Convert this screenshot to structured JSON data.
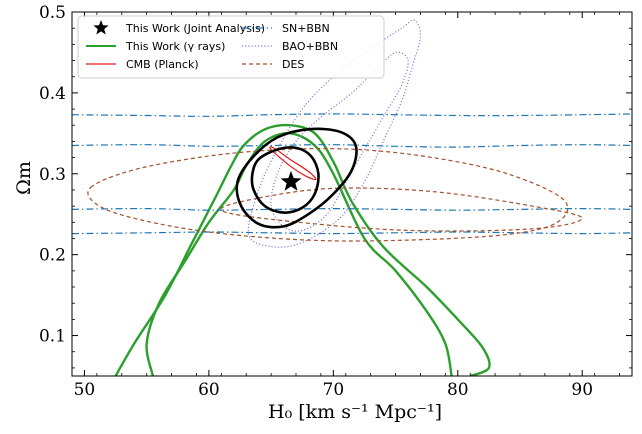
{
  "chart_data": {
    "type": "contour",
    "xlabel": "H₀ [km s⁻¹ Mpc⁻¹]",
    "ylabel": "Ωm",
    "xlim": [
      49,
      94
    ],
    "ylim": [
      0.05,
      0.5
    ],
    "xticks": [
      "50",
      "60",
      "70",
      "80",
      "90"
    ],
    "yticks": [
      "0.1",
      "0.2",
      "0.3",
      "0.4",
      "0.5"
    ],
    "xtick_values": [
      50,
      60,
      70,
      80,
      90
    ],
    "ytick_values": [
      0.1,
      0.2,
      0.3,
      0.4,
      0.5
    ],
    "grid": false,
    "legend_placement": "top",
    "best_fit": {
      "name": "This Work (Joint Analysis)",
      "x": 66.6,
      "y": 0.29
    },
    "series": [
      {
        "name": "This Work (γ rays)",
        "color": "#2ca02c",
        "style": "solid",
        "contours": [
          [
            [
              55.5,
              0.05
            ],
            [
              55,
              0.09
            ],
            [
              56,
              0.14
            ],
            [
              58,
              0.19
            ],
            [
              60,
              0.24
            ],
            [
              62,
              0.28
            ],
            [
              63,
              0.31
            ],
            [
              64.5,
              0.34
            ],
            [
              66.5,
              0.35
            ],
            [
              68.5,
              0.335
            ],
            [
              70,
              0.3
            ],
            [
              72.5,
              0.22
            ],
            [
              75,
              0.18
            ],
            [
              77.5,
              0.13
            ],
            [
              79,
              0.09
            ],
            [
              79.5,
              0.05
            ]
          ],
          [
            [
              52.5,
              0.05
            ],
            [
              54,
              0.09
            ],
            [
              56.5,
              0.15
            ],
            [
              58.5,
              0.21
            ],
            [
              60.5,
              0.27
            ],
            [
              61.8,
              0.31
            ],
            [
              62.8,
              0.335
            ],
            [
              64.5,
              0.355
            ],
            [
              66.5,
              0.36
            ],
            [
              68.5,
              0.35
            ],
            [
              70,
              0.315
            ],
            [
              71.5,
              0.265
            ],
            [
              74,
              0.21
            ],
            [
              77.5,
              0.16
            ],
            [
              80,
              0.12
            ],
            [
              82,
              0.085
            ],
            [
              82.5,
              0.06
            ],
            [
              81,
              0.05
            ]
          ]
        ]
      },
      {
        "name": "CMB (Planck)",
        "color": "#e41a1c",
        "style": "solid",
        "contours": [
          [
            [
              65,
              0.33
            ],
            [
              66.5,
              0.31
            ],
            [
              67.8,
              0.297
            ],
            [
              68.6,
              0.293
            ],
            [
              68,
              0.303
            ],
            [
              66.5,
              0.318
            ],
            [
              65.2,
              0.332
            ],
            [
              65,
              0.33
            ]
          ]
        ]
      },
      {
        "name": "SN+BBN",
        "color": "#1f77b4",
        "style": "dashdot",
        "contours": [
          [
            [
              49,
              0.373
            ],
            [
              55,
              0.372
            ],
            [
              60,
              0.371
            ],
            [
              65,
              0.373
            ],
            [
              70,
              0.374
            ],
            [
              75,
              0.373
            ],
            [
              80,
              0.372
            ],
            [
              85,
              0.372
            ],
            [
              90,
              0.373
            ],
            [
              94,
              0.374
            ]
          ],
          [
            [
              49,
              0.335
            ],
            [
              55,
              0.336
            ],
            [
              60,
              0.334
            ],
            [
              65,
              0.335
            ],
            [
              70,
              0.336
            ],
            [
              75,
              0.334
            ],
            [
              80,
              0.333
            ],
            [
              85,
              0.335
            ],
            [
              90,
              0.336
            ],
            [
              94,
              0.335
            ]
          ],
          [
            [
              49,
              0.256
            ],
            [
              55,
              0.257
            ],
            [
              60,
              0.255
            ],
            [
              65,
              0.256
            ],
            [
              70,
              0.257
            ],
            [
              75,
              0.256
            ],
            [
              80,
              0.255
            ],
            [
              85,
              0.256
            ],
            [
              90,
              0.257
            ],
            [
              94,
              0.256
            ]
          ],
          [
            [
              49,
              0.226
            ],
            [
              55,
              0.227
            ],
            [
              60,
              0.228
            ],
            [
              65,
              0.227
            ],
            [
              70,
              0.226
            ],
            [
              75,
              0.227
            ],
            [
              80,
              0.228
            ],
            [
              85,
              0.227
            ],
            [
              90,
              0.226
            ],
            [
              94,
              0.227
            ]
          ]
        ]
      },
      {
        "name": "BAO+BBN",
        "color": "#8080e0",
        "style": "dotted",
        "contours": [
          [
            [
              65,
              0.26
            ],
            [
              65.5,
              0.3
            ],
            [
              67,
              0.34
            ],
            [
              69,
              0.37
            ],
            [
              71.5,
              0.4
            ],
            [
              73.5,
              0.43
            ],
            [
              75,
              0.45
            ],
            [
              76,
              0.44
            ],
            [
              75.5,
              0.41
            ],
            [
              74,
              0.37
            ],
            [
              72.5,
              0.33
            ],
            [
              71,
              0.29
            ],
            [
              69.5,
              0.25
            ],
            [
              67.5,
              0.23
            ],
            [
              66,
              0.235
            ],
            [
              65,
              0.26
            ]
          ],
          [
            [
              63.2,
              0.225
            ],
            [
              64,
              0.28
            ],
            [
              65.5,
              0.33
            ],
            [
              67.5,
              0.38
            ],
            [
              70,
              0.42
            ],
            [
              73,
              0.455
            ],
            [
              75.5,
              0.48
            ],
            [
              76.5,
              0.49
            ],
            [
              77,
              0.47
            ],
            [
              76.3,
              0.43
            ],
            [
              75.5,
              0.39
            ],
            [
              74,
              0.34
            ],
            [
              72.5,
              0.29
            ],
            [
              70.5,
              0.245
            ],
            [
              67.5,
              0.215
            ],
            [
              65,
              0.21
            ],
            [
              63.2,
              0.225
            ]
          ]
        ]
      },
      {
        "name": "DES",
        "color": "#a0522d",
        "style": "dashed",
        "contours": [
          [
            [
              64,
              0.27
            ],
            [
              70,
              0.282
            ],
            [
              78,
              0.278
            ],
            [
              86,
              0.26
            ],
            [
              90,
              0.245
            ],
            [
              86,
              0.232
            ],
            [
              76,
              0.23
            ],
            [
              66,
              0.242
            ],
            [
              61,
              0.255
            ],
            [
              64,
              0.27
            ]
          ],
          [
            [
              50.5,
              0.283
            ],
            [
              54,
              0.305
            ],
            [
              60,
              0.322
            ],
            [
              66,
              0.33
            ],
            [
              72,
              0.33
            ],
            [
              78,
              0.32
            ],
            [
              84,
              0.3
            ],
            [
              88.5,
              0.268
            ],
            [
              88,
              0.24
            ],
            [
              84,
              0.225
            ],
            [
              76,
              0.218
            ],
            [
              68,
              0.218
            ],
            [
              60,
              0.228
            ],
            [
              54,
              0.245
            ],
            [
              51,
              0.262
            ],
            [
              50.5,
              0.283
            ]
          ]
        ]
      },
      {
        "name": "This Work (Joint Analysis)",
        "color": "#000000",
        "style": "solid",
        "contours": [
          [
            [
              63.5,
              0.3
            ],
            [
              64,
              0.318
            ],
            [
              65.5,
              0.33
            ],
            [
              67,
              0.332
            ],
            [
              68.2,
              0.322
            ],
            [
              68.8,
              0.3
            ],
            [
              68.5,
              0.275
            ],
            [
              67.5,
              0.258
            ],
            [
              66,
              0.252
            ],
            [
              64.5,
              0.26
            ],
            [
              63.6,
              0.28
            ],
            [
              63.5,
              0.3
            ]
          ],
          [
            [
              62.6,
              0.26
            ],
            [
              62.3,
              0.29
            ],
            [
              63.5,
              0.32
            ],
            [
              65.5,
              0.345
            ],
            [
              68,
              0.355
            ],
            [
              70.5,
              0.352
            ],
            [
              71.8,
              0.335
            ],
            [
              71.5,
              0.305
            ],
            [
              70,
              0.275
            ],
            [
              68,
              0.25
            ],
            [
              66,
              0.235
            ],
            [
              64,
              0.238
            ],
            [
              62.6,
              0.26
            ]
          ]
        ]
      }
    ]
  },
  "legend": {
    "left": [
      {
        "label": "This Work (Joint Analysis)",
        "kind": "star",
        "color": "#000000"
      },
      {
        "label": "This Work (γ rays)",
        "kind": "line",
        "color": "#2ca02c",
        "style": "solid"
      },
      {
        "label": "CMB (Planck)",
        "kind": "line",
        "color": "#e41a1c",
        "style": "solid"
      }
    ],
    "right": [
      {
        "label": "SN+BBN",
        "kind": "line",
        "color": "#1f77b4",
        "style": "dashdot"
      },
      {
        "label": "BAO+BBN",
        "kind": "line",
        "color": "#8080e0",
        "style": "dotted"
      },
      {
        "label": "DES",
        "kind": "line",
        "color": "#a0522d",
        "style": "dashed"
      }
    ]
  }
}
